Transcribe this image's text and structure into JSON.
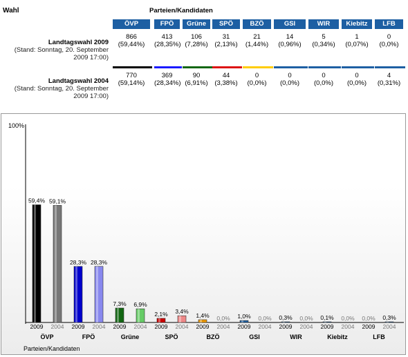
{
  "header": {
    "wahl": "Wahl",
    "parties": "Parteien/Kandidaten"
  },
  "parties": [
    "ÖVP",
    "FPÖ",
    "Grüne",
    "SPÖ",
    "BZÖ",
    "GSI",
    "WIR",
    "Kiebitz",
    "LFB"
  ],
  "party_colors": [
    "#000000",
    "#1a1aff",
    "#116611",
    "#dd1111",
    "#ffcc00",
    "#1d5fa3",
    "#1d5fa3",
    "#1d5fa3",
    "#1d5fa3"
  ],
  "rows": [
    {
      "title": "Landtagswahl 2009",
      "subtitle": "(Stand: Sonntag, 20. September 2009 17:00)",
      "votes": [
        "866",
        "413",
        "106",
        "31",
        "21",
        "14",
        "5",
        "1",
        "0"
      ],
      "percents": [
        "(59,44%)",
        "(28,35%)",
        "(7,28%)",
        "(2,13%)",
        "(1,44%)",
        "(0,96%)",
        "(0,34%)",
        "(0,07%)",
        "(0,0%)"
      ]
    },
    {
      "title": "Landtagswahl 2004",
      "subtitle": "(Stand: Sonntag, 20. September 2009 17:00)",
      "votes": [
        "770",
        "369",
        "90",
        "44",
        "0",
        "0",
        "0",
        "0",
        "4"
      ],
      "percents": [
        "(59,14%)",
        "(28,34%)",
        "(6,91%)",
        "(3,38%)",
        "(0,0%)",
        "(0,0%)",
        "(0,0%)",
        "(0,0%)",
        "(0,31%)"
      ]
    }
  ],
  "chart_data": {
    "type": "bar",
    "categories": [
      "ÖVP",
      "FPÖ",
      "Grüne",
      "SPÖ",
      "BZÖ",
      "GSI",
      "WIR",
      "Kiebitz",
      "LFB"
    ],
    "series": [
      {
        "name": "2009",
        "values": [
          59.4,
          28.3,
          7.3,
          2.1,
          1.4,
          1.0,
          0.3,
          0.1,
          0.0
        ],
        "labels": [
          "59,4%",
          "28,3%",
          "7,3%",
          "2,1%",
          "1,4%",
          "1,0%",
          "0,3%",
          "0,1%",
          "0,0%"
        ]
      },
      {
        "name": "2004",
        "values": [
          59.1,
          28.3,
          6.9,
          3.4,
          0.0,
          0.0,
          0.0,
          0.0,
          0.3
        ],
        "labels": [
          "59,1%",
          "28,3%",
          "6,9%",
          "3,4%",
          "0,0%",
          "0,0%",
          "0,0%",
          "0,0%",
          "0,3%"
        ]
      }
    ],
    "series_2009_colors": [
      "#000000",
      "#0000cc",
      "#116611",
      "#cc0000",
      "#ee9900",
      "#1d5fa3",
      "#1d5fa3",
      "#1d5fa3",
      "#1d5fa3"
    ],
    "series_2004_colors": [
      "#777777",
      "#8888ee",
      "#66cc66",
      "#ee8888",
      "#ffdd66",
      "#1d5fa3",
      "#1d5fa3",
      "#1d5fa3",
      "#1d5fa3"
    ],
    "ymax_label": "100%",
    "xlabel": "Parteien/Kandidaten",
    "ylim": [
      0,
      100
    ]
  }
}
